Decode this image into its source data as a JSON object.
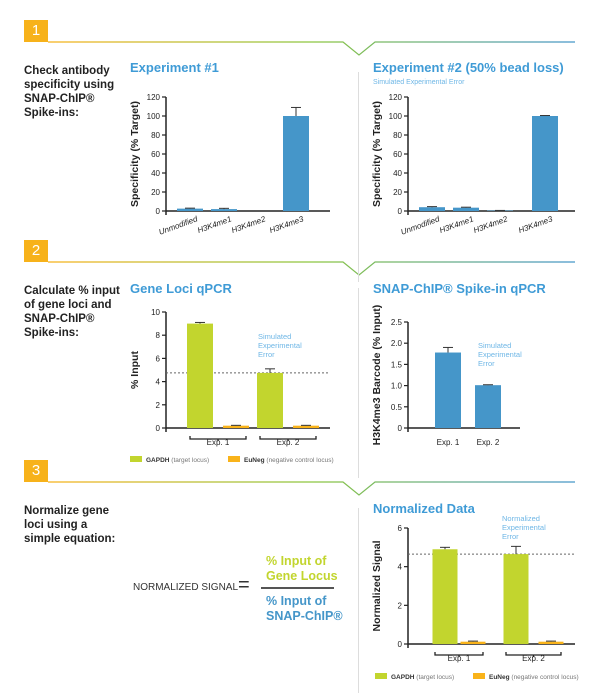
{
  "colors": {
    "blue": "#4596c9",
    "green": "#c2d52e",
    "orange": "#f9b31a",
    "title": "#3f9bd6",
    "annotation": "#6fb7e6"
  },
  "steps": [
    {
      "number": "1",
      "text": "Check antibody specificity using SNAP-ChIP® Spike-ins:"
    },
    {
      "number": "2",
      "text": "Calculate % input of gene loci and SNAP-ChIP® Spike-ins:"
    },
    {
      "number": "3",
      "text": "Normalize gene loci using a simple equation:"
    }
  ],
  "equation": {
    "label": "NORMALIZED SIGNAL",
    "sign": "=",
    "numerator": "% Input of Gene Locus",
    "denominator": "% Input of SNAP-ChIP®"
  },
  "legend": {
    "gapdh": "GAPDH",
    "gapdh_note": "(target locus)",
    "euneg": "EuNeg",
    "euneg_note": "(negative control locus)"
  },
  "chart_data": [
    {
      "type": "bar",
      "title": "Experiment #1",
      "subtitle": "",
      "ylabel": "Specificity (% Target)",
      "ylim": [
        0,
        120
      ],
      "yticks": [
        "0",
        "20",
        "40",
        "60",
        "80",
        "100",
        "120"
      ],
      "categories": [
        "Unmodified",
        "H3K4me1",
        "H3K4me2",
        "H3K4me3"
      ],
      "series": [
        {
          "name": "Specificity",
          "color": "blue",
          "values": [
            2.5,
            2,
            0,
            100
          ],
          "errors": [
            0.5,
            0.8,
            0,
            9
          ]
        }
      ]
    },
    {
      "type": "bar",
      "title": "Experiment #2 (50% bead loss)",
      "subtitle": "Simulated Experimental Error",
      "ylabel": "Specificity (% Target)",
      "ylim": [
        0,
        120
      ],
      "yticks": [
        "0",
        "20",
        "40",
        "60",
        "80",
        "100",
        "120"
      ],
      "categories": [
        "Unmodified",
        "H3K4me1",
        "H3K4me2",
        "H3K4me3"
      ],
      "series": [
        {
          "name": "Specificity",
          "color": "blue",
          "values": [
            4,
            3.5,
            0.5,
            100
          ],
          "errors": [
            0.6,
            0.5,
            0.1,
            0.5
          ]
        }
      ]
    },
    {
      "type": "bar",
      "title": "Gene Loci qPCR",
      "ylabel": "% Input",
      "ylim": [
        0,
        10
      ],
      "yticks": [
        "0",
        "2",
        "4",
        "6",
        "8",
        "10"
      ],
      "categories": [
        "Exp. 1",
        "Exp. 2"
      ],
      "annotation": "Simulated Experimental Error",
      "reference_line": 4.75,
      "series": [
        {
          "name": "GAPDH",
          "color": "green",
          "values": [
            9,
            4.75
          ],
          "errors": [
            0.1,
            0.35
          ]
        },
        {
          "name": "EuNeg",
          "color": "orange",
          "values": [
            0.2,
            0.2
          ],
          "errors": [
            0.03,
            0.03
          ]
        }
      ]
    },
    {
      "type": "bar",
      "title": "SNAP-ChIP® Spike-in qPCR",
      "ylabel": "H3K4me3 Barcode (% Input)",
      "ylim": [
        0,
        2.5
      ],
      "yticks": [
        "0",
        "0.5",
        "1.0",
        "1.5",
        "2.0",
        "2.5"
      ],
      "categories": [
        "Exp. 1",
        "Exp. 2"
      ],
      "annotation": "Simulated Experimental Error",
      "series": [
        {
          "name": "H3K4me3 Barcode",
          "color": "blue",
          "values": [
            1.78,
            1.01
          ],
          "errors": [
            0.12,
            0.01
          ]
        }
      ]
    },
    {
      "type": "bar",
      "title": "Normalized Data",
      "ylabel": "Normalized Signal",
      "ylim": [
        0,
        6
      ],
      "yticks": [
        "0",
        "2",
        "4",
        "6"
      ],
      "categories": [
        "Exp. 1",
        "Exp. 2"
      ],
      "annotation": "Normalized Experimental Error",
      "reference_line": 4.65,
      "series": [
        {
          "name": "GAPDH",
          "color": "green",
          "values": [
            4.9,
            4.65
          ],
          "errors": [
            0.1,
            0.4
          ]
        },
        {
          "name": "EuNeg",
          "color": "orange",
          "values": [
            0.12,
            0.12
          ],
          "errors": [
            0.03,
            0.03
          ]
        }
      ]
    }
  ]
}
